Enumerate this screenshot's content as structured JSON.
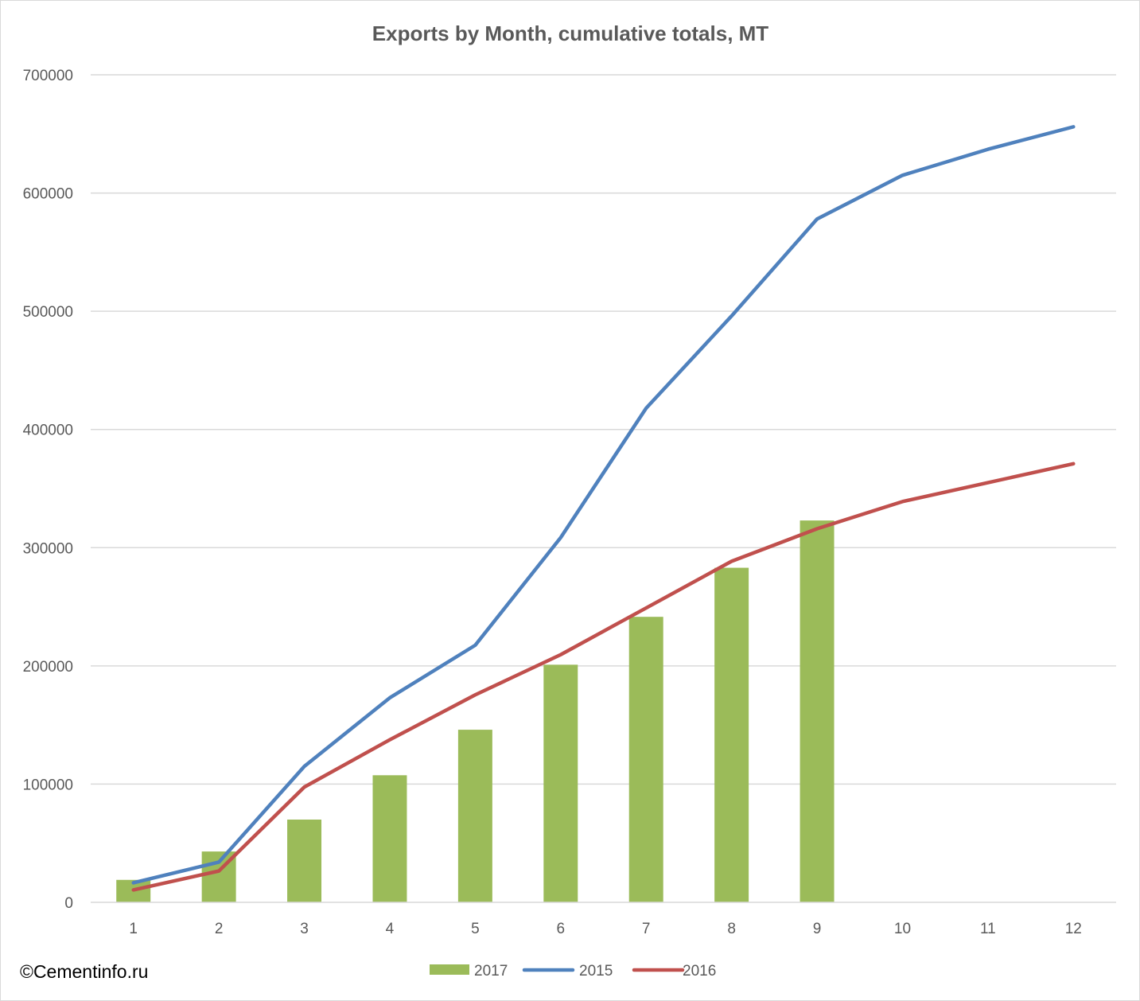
{
  "watermark": "©Cementinfo.ru",
  "chart_data": {
    "type": "bar",
    "title": "Exports by Month, cumulative totals, MT",
    "xlabel": "",
    "ylabel": "",
    "categories": [
      "1",
      "2",
      "3",
      "4",
      "5",
      "6",
      "7",
      "8",
      "9",
      "10",
      "11",
      "12"
    ],
    "ylim": [
      0,
      700000
    ],
    "yticks": [
      "0",
      "100000",
      "200000",
      "300000",
      "400000",
      "500000",
      "600000",
      "700000"
    ],
    "grid": true,
    "legend": "bottom",
    "series": [
      {
        "name": "2017",
        "type": "bar",
        "color": "#9bbb59",
        "values": [
          19000,
          43000,
          70000,
          107500,
          146000,
          201000,
          241500,
          283000,
          323000,
          null,
          null,
          null
        ]
      },
      {
        "name": "2015",
        "type": "line",
        "color": "#4f81bd",
        "values": [
          16500,
          34000,
          115000,
          173000,
          217500,
          308500,
          418000,
          496000,
          578000,
          615000,
          637000,
          656000
        ]
      },
      {
        "name": "2016",
        "type": "line",
        "color": "#c0504d",
        "values": [
          10500,
          26500,
          97500,
          137500,
          175500,
          209500,
          249000,
          288500,
          316000,
          339000,
          355000,
          371000
        ]
      }
    ]
  }
}
